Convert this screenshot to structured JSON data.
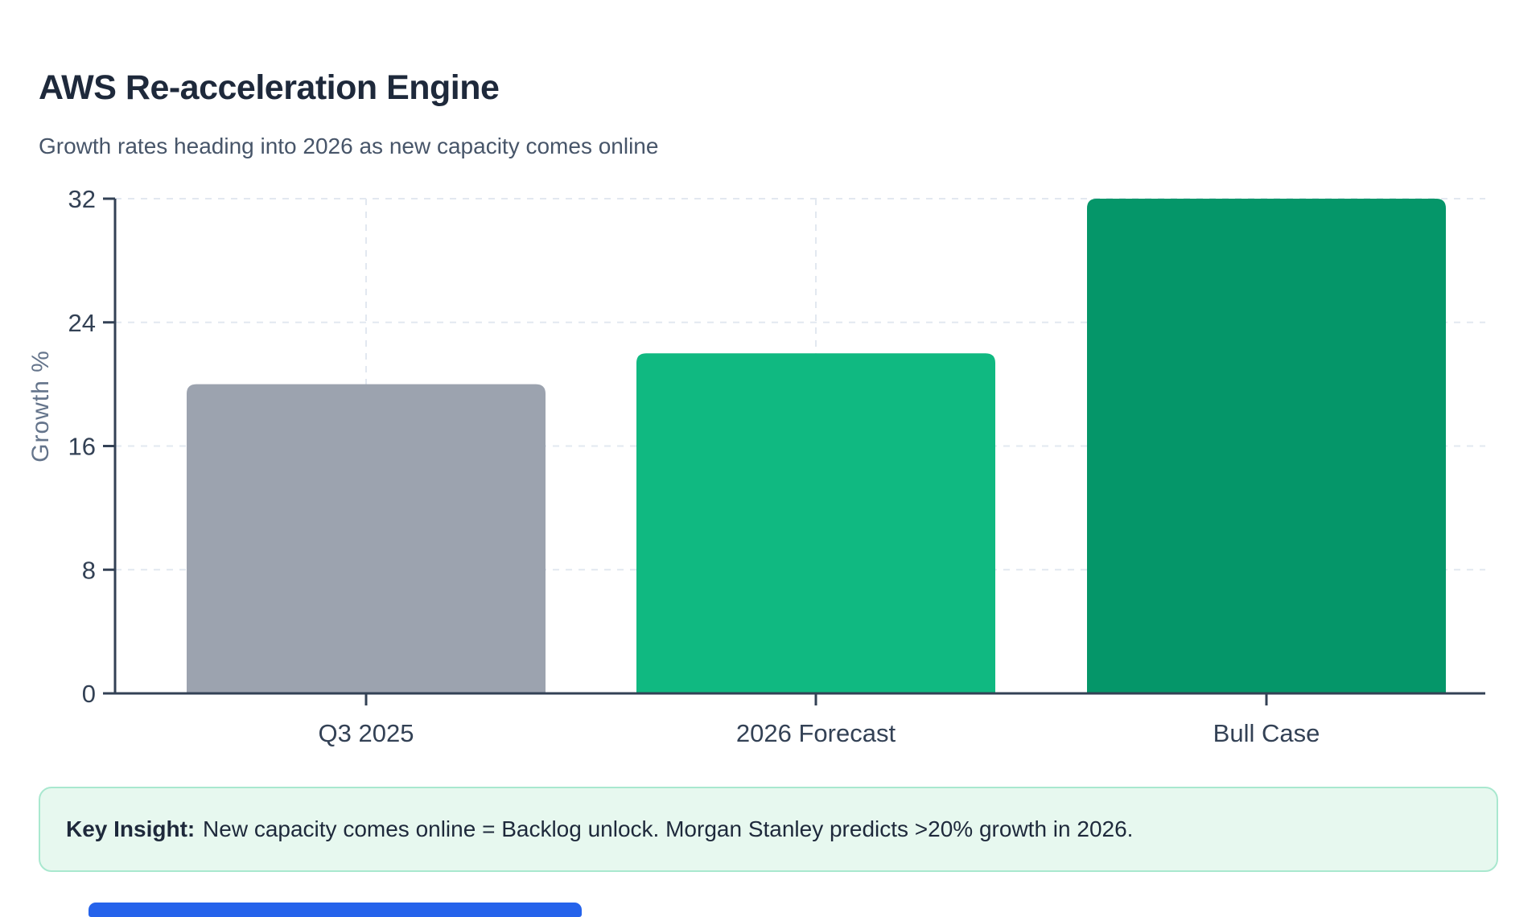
{
  "page": {
    "title": "AWS Re-acceleration Engine",
    "subtitle": "Growth rates heading into 2026 as new capacity comes online"
  },
  "chart_data": {
    "type": "bar",
    "categories": [
      "Q3 2025",
      "2026 Forecast",
      "Bull Case"
    ],
    "values": [
      20,
      22,
      32
    ],
    "title": "AWS Re-acceleration Engine",
    "xlabel": "",
    "ylabel": "Growth %",
    "ylim": [
      0,
      32
    ],
    "yticks": [
      0,
      8,
      16,
      24,
      32
    ],
    "grid": true,
    "legend": "none",
    "bar_colors": [
      "#9ca3af",
      "#10b981",
      "#059669"
    ]
  },
  "insight": {
    "label": "Key Insight:",
    "text": "New capacity comes online = Backlog unlock. Morgan Stanley predicts >20% growth in 2026."
  },
  "colors": {
    "title_text": "#1e293b",
    "subtitle_text": "#475569",
    "axis": "#334155",
    "muted": "#64748b",
    "grid": "#e2e8f0",
    "insight_bg": "#e7f8ef",
    "insight_border": "#a9e8cf",
    "insight_text": "#1e293b",
    "scrollbar": "#2563eb"
  }
}
